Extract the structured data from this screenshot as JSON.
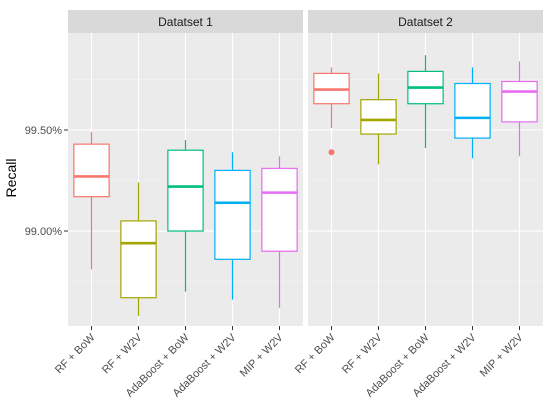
{
  "chart_data": {
    "type": "boxplot",
    "ylabel": "Recall",
    "xlabel": "",
    "ylim": [
      98.53,
      99.98
    ],
    "y_ticks": [
      99.0,
      99.5
    ],
    "y_tick_labels": [
      "99.00%",
      "99.50%"
    ],
    "grid": true,
    "legend": "none",
    "categories": [
      "RF + BoW",
      "RF + W2V",
      "AdaBoost + BoW",
      "AdaBoost + W2V",
      "MIP + W2V"
    ],
    "colors": [
      "#F8766D",
      "#A3A500",
      "#00BF7D",
      "#00B0F6",
      "#E76BF3"
    ],
    "panels": [
      {
        "title": "Datatset 1",
        "boxes": [
          {
            "category": "RF + BoW",
            "whisker_low": 98.81,
            "q1": 99.17,
            "median": 99.27,
            "q3": 99.43,
            "whisker_high": 99.49,
            "outliers": []
          },
          {
            "category": "RF + W2V",
            "whisker_low": 98.58,
            "q1": 98.67,
            "median": 98.94,
            "q3": 99.05,
            "whisker_high": 99.24,
            "outliers": []
          },
          {
            "category": "AdaBoost + BoW",
            "whisker_low": 98.7,
            "q1": 99.0,
            "median": 99.22,
            "q3": 99.4,
            "whisker_high": 99.45,
            "outliers": []
          },
          {
            "category": "AdaBoost + W2V",
            "whisker_low": 98.66,
            "q1": 98.86,
            "median": 99.14,
            "q3": 99.3,
            "whisker_high": 99.39,
            "outliers": []
          },
          {
            "category": "MIP + W2V",
            "whisker_low": 98.62,
            "q1": 98.9,
            "median": 99.19,
            "q3": 99.31,
            "whisker_high": 99.37,
            "outliers": []
          }
        ]
      },
      {
        "title": "Datatset 2",
        "boxes": [
          {
            "category": "RF + BoW",
            "whisker_low": 99.51,
            "q1": 99.63,
            "median": 99.7,
            "q3": 99.78,
            "whisker_high": 99.81,
            "outliers": [
              99.39
            ]
          },
          {
            "category": "RF + W2V",
            "whisker_low": 99.33,
            "q1": 99.48,
            "median": 99.55,
            "q3": 99.65,
            "whisker_high": 99.78,
            "outliers": []
          },
          {
            "category": "AdaBoost + BoW",
            "whisker_low": 99.41,
            "q1": 99.63,
            "median": 99.71,
            "q3": 99.79,
            "whisker_high": 99.87,
            "outliers": []
          },
          {
            "category": "AdaBoost + W2V",
            "whisker_low": 99.36,
            "q1": 99.46,
            "median": 99.56,
            "q3": 99.73,
            "whisker_high": 99.81,
            "outliers": []
          },
          {
            "category": "MIP + W2V",
            "whisker_low": 99.37,
            "q1": 99.54,
            "median": 99.69,
            "q3": 99.74,
            "whisker_high": 99.84,
            "outliers": []
          }
        ]
      }
    ]
  }
}
